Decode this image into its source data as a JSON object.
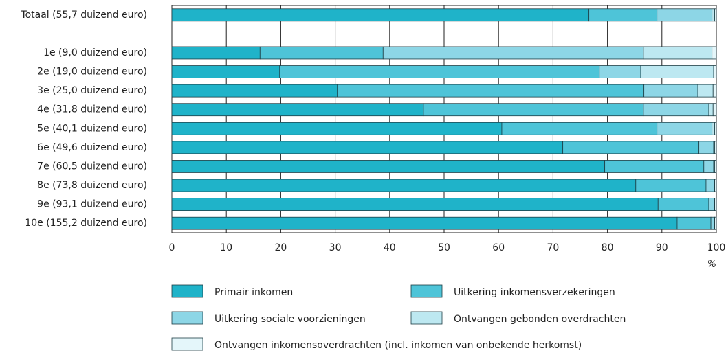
{
  "chart_data": {
    "type": "stacked_bar_horizontal",
    "categories": [
      "Totaal (55,7 duizend euro)",
      null,
      "1e (9,0 duizend euro)",
      "2e (19,0 duizend euro)",
      "3e (25,0 duizend euro)",
      "4e (31,8 duizend euro)",
      "5e (40,1 duizend euro)",
      "6e (49,6 duizend euro)",
      "7e (60,5 duizend euro)",
      "8e (73,8 duizend euro)",
      "9e (93,1 duizend euro)",
      "10e (155,2 duizend euro)"
    ],
    "series": [
      {
        "name": "Primair inkomen",
        "color": "#1fb3c9",
        "values": [
          76.6,
          null,
          16.2,
          19.8,
          30.4,
          46.2,
          60.6,
          71.8,
          79.5,
          85.2,
          89.3,
          92.8
        ]
      },
      {
        "name": "Uitkering inkomensverzekeringen",
        "color": "#4ec4d8",
        "values": [
          12.5,
          null,
          22.6,
          58.7,
          56.3,
          40.4,
          28.5,
          25.0,
          18.2,
          12.9,
          9.3,
          6.2
        ]
      },
      {
        "name": "Uitkering sociale voorzieningen",
        "color": "#8dd6e6",
        "values": [
          10.1,
          null,
          47.8,
          7.6,
          9.9,
          12.0,
          10.1,
          2.7,
          1.8,
          1.5,
          1.0,
          0.6
        ]
      },
      {
        "name": "Ontvangen gebonden overdrachten",
        "color": "#bde8f1",
        "values": [
          0.5,
          null,
          12.6,
          13.4,
          2.8,
          0.8,
          0.5,
          0.2,
          0.2,
          0.1,
          0.1,
          0.1
        ]
      },
      {
        "name": "Ontvangen inkomensoverdrachten (incl. inkomen van onbekende herkomst)",
        "color": "#e4f6fa",
        "values": [
          0.3,
          null,
          0.8,
          0.5,
          0.6,
          0.6,
          0.3,
          0.3,
          0.3,
          0.3,
          0.3,
          0.3
        ]
      }
    ],
    "xlabel": "%",
    "xlim": [
      0,
      100
    ],
    "xticks": [
      0,
      10,
      20,
      30,
      40,
      50,
      60,
      70,
      80,
      90,
      100
    ],
    "grid": true,
    "legend": "bottom"
  }
}
